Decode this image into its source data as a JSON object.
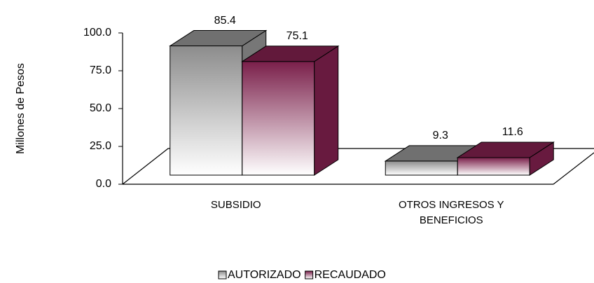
{
  "chart_data": {
    "type": "bar3d",
    "y_label": "Millones de Pesos",
    "categories": [
      "SUBSIDIO",
      "OTROS INGRESOS Y BENEFICIOS"
    ],
    "series": [
      {
        "name": "AUTORIZADO",
        "color": "#8c8c8c",
        "values": [
          85.4,
          9.3
        ]
      },
      {
        "name": "RECAUDADO",
        "color": "#7a1f4a",
        "values": [
          75.1,
          11.6
        ]
      }
    ],
    "ylim": [
      0,
      100
    ],
    "yticks": [
      {
        "value": 0,
        "label": "0.0"
      },
      {
        "value": 25,
        "label": "25.0"
      },
      {
        "value": 50,
        "label": "50.0"
      },
      {
        "value": 75,
        "label": "75.0"
      },
      {
        "value": 100,
        "label": "100.0"
      }
    ],
    "legend": "bottom"
  }
}
